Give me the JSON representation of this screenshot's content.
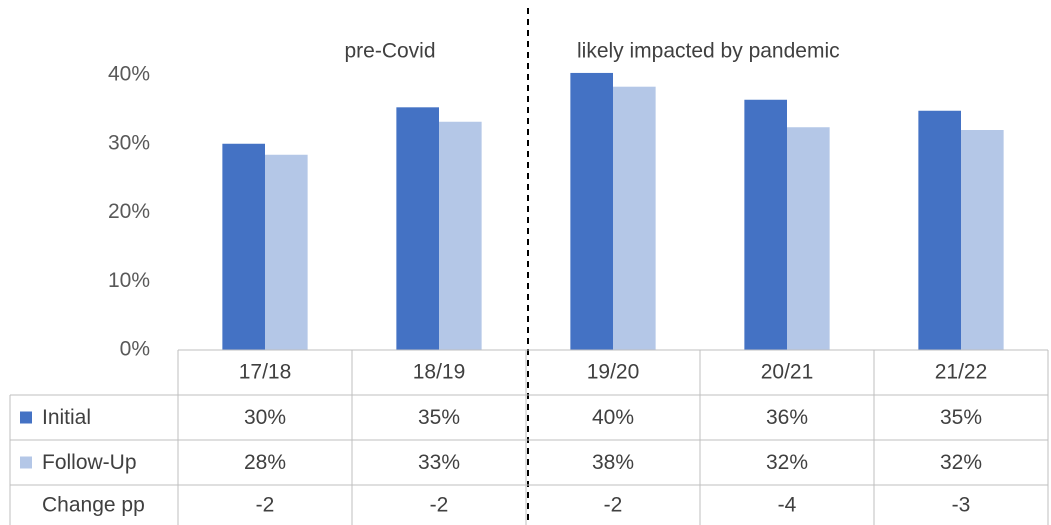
{
  "chart_data": {
    "type": "bar",
    "annotations": [
      "pre-Covid",
      "likely impacted by pandemic"
    ],
    "categories": [
      "17/18",
      "18/19",
      "19/20",
      "20/21",
      "21/22"
    ],
    "series": [
      {
        "name": "Initial",
        "color": "#4472c4",
        "values": [
          30,
          35.3,
          40.3,
          36.4,
          34.8
        ],
        "value_labels": [
          "30%",
          "35%",
          "40%",
          "36%",
          "35%"
        ]
      },
      {
        "name": "Follow-Up",
        "color": "#b4c7e7",
        "values": [
          28.4,
          33.2,
          38.3,
          32.4,
          32.0
        ],
        "value_labels": [
          "28%",
          "33%",
          "38%",
          "32%",
          "32%"
        ]
      }
    ],
    "change": {
      "name": "Change pp",
      "values": [
        -2,
        -2,
        -2,
        -4,
        -3
      ]
    },
    "ylim": [
      0,
      40
    ],
    "yticks": [
      {
        "value": 0,
        "label": "0%"
      },
      {
        "value": 10,
        "label": "10%"
      },
      {
        "value": 20,
        "label": "20%"
      },
      {
        "value": 30,
        "label": "30%"
      },
      {
        "value": 40,
        "label": "40%"
      }
    ]
  }
}
